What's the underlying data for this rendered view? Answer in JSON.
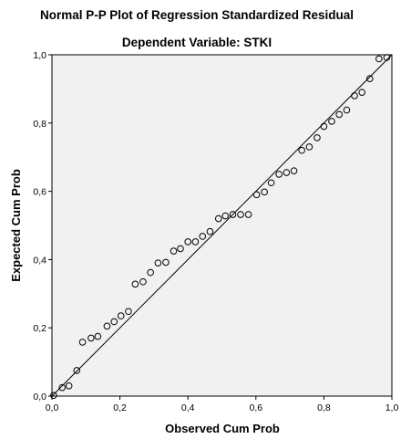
{
  "chart_data": {
    "type": "scatter",
    "title": "Normal P-P Plot of Regression Standardized Residual",
    "subtitle": "Dependent Variable: STKI",
    "xlabel": "Observed Cum Prob",
    "ylabel": "Expected Cum Prob",
    "xlim": [
      0,
      1
    ],
    "ylim": [
      0,
      1
    ],
    "x_ticks": [
      "0,0",
      "0,2",
      "0,4",
      "0,6",
      "0,8",
      "1,0"
    ],
    "y_ticks": [
      "0,0",
      "0,2",
      "0,4",
      "0,6",
      "0,8",
      "1,0"
    ],
    "grid": false,
    "reference_line": [
      [
        0,
        0
      ],
      [
        1,
        1
      ]
    ],
    "marker": "open-circle",
    "plot_background": "#f1f1f1",
    "points": [
      [
        0.005,
        0.002
      ],
      [
        0.03,
        0.025
      ],
      [
        0.05,
        0.03
      ],
      [
        0.073,
        0.075
      ],
      [
        0.09,
        0.158
      ],
      [
        0.115,
        0.17
      ],
      [
        0.135,
        0.175
      ],
      [
        0.162,
        0.205
      ],
      [
        0.183,
        0.218
      ],
      [
        0.203,
        0.235
      ],
      [
        0.225,
        0.248
      ],
      [
        0.245,
        0.328
      ],
      [
        0.268,
        0.335
      ],
      [
        0.29,
        0.362
      ],
      [
        0.312,
        0.39
      ],
      [
        0.335,
        0.392
      ],
      [
        0.358,
        0.425
      ],
      [
        0.378,
        0.432
      ],
      [
        0.4,
        0.452
      ],
      [
        0.422,
        0.452
      ],
      [
        0.443,
        0.468
      ],
      [
        0.465,
        0.482
      ],
      [
        0.49,
        0.52
      ],
      [
        0.51,
        0.528
      ],
      [
        0.532,
        0.532
      ],
      [
        0.555,
        0.532
      ],
      [
        0.578,
        0.532
      ],
      [
        0.602,
        0.59
      ],
      [
        0.625,
        0.598
      ],
      [
        0.645,
        0.625
      ],
      [
        0.668,
        0.65
      ],
      [
        0.69,
        0.655
      ],
      [
        0.712,
        0.66
      ],
      [
        0.735,
        0.72
      ],
      [
        0.757,
        0.73
      ],
      [
        0.78,
        0.757
      ],
      [
        0.8,
        0.79
      ],
      [
        0.823,
        0.805
      ],
      [
        0.845,
        0.825
      ],
      [
        0.867,
        0.838
      ],
      [
        0.89,
        0.88
      ],
      [
        0.912,
        0.89
      ],
      [
        0.935,
        0.93
      ],
      [
        0.962,
        0.988
      ],
      [
        0.985,
        0.992
      ]
    ]
  }
}
